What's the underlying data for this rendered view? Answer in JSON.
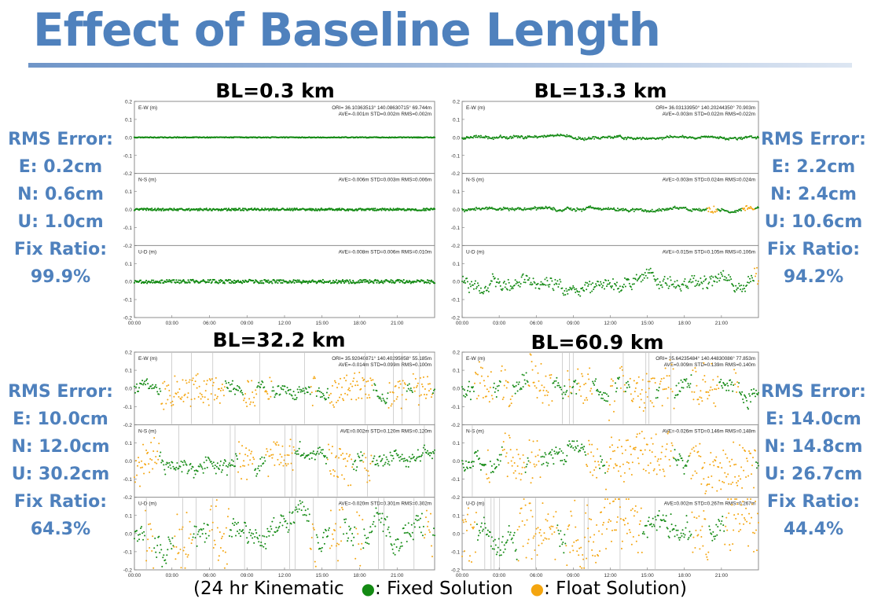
{
  "title": "Effect of Baseline Length",
  "colors": {
    "title": "#4f81bd",
    "fixed": "#138a13",
    "float": "#f4a50f",
    "gap": "#b3b3b3"
  },
  "footer": {
    "prefix": "(24 hr Kinematic",
    "fixed_dot": "●",
    "fixed_label": ": Fixed Solution",
    "float_dot": "●",
    "float_label": ": Float Solution)"
  },
  "panels": [
    {
      "title": "BL=0.3 km",
      "stats": [
        "RMS Error:",
        "E: 0.2cm",
        "N: 0.6cm",
        "U: 1.0cm",
        "Fix Ratio:",
        "99.9%"
      ]
    },
    {
      "title": "BL=13.3 km",
      "stats": [
        "RMS Error:",
        "E: 2.2cm",
        "N: 2.4cm",
        "U: 10.6cm",
        "Fix Ratio:",
        "94.2%"
      ]
    },
    {
      "title": "BL=32.2 km",
      "stats": [
        "RMS Error:",
        "E: 10.0cm",
        "N: 12.0cm",
        "U: 30.2cm",
        "Fix Ratio:",
        "64.3%"
      ]
    },
    {
      "title": "BL=60.9 km",
      "stats": [
        "RMS Error:",
        "E: 14.0cm",
        "N: 14.8cm",
        "U: 26.7cm",
        "Fix Ratio:",
        "44.4%"
      ]
    }
  ],
  "chart_data": [
    {
      "type": "scatter",
      "title": "BL=0.3 km",
      "x_ticks": [
        "00:00",
        "03:00",
        "06:00",
        "09:00",
        "12:00",
        "15:00",
        "18:00",
        "21:00"
      ],
      "y_ticks": [
        "0.2",
        "0.1",
        "0.0",
        "-0.1",
        "-0.2"
      ],
      "ylim": [
        -0.2,
        0.2
      ],
      "header": "ORI= 36.10363513° 140.08630715° 69.744m",
      "fix_ratio": 0.999,
      "subplots": [
        {
          "label": "E-W (m)",
          "stats": "AVE=-0.001m STD=0.002m RMS=0.002m",
          "rms": 0.002
        },
        {
          "label": "N-S (m)",
          "stats": "AVE=-0.006m STD=0.003m RMS=0.006m",
          "rms": 0.006
        },
        {
          "label": "U-D (m)",
          "stats": "AVE=-0.008m STD=0.006m RMS=0.010m",
          "rms": 0.01
        }
      ]
    },
    {
      "type": "scatter",
      "title": "BL=13.3 km",
      "x_ticks": [
        "00:00",
        "03:00",
        "06:00",
        "09:00",
        "12:00",
        "15:00",
        "18:00",
        "21:00"
      ],
      "y_ticks": [
        "0.2",
        "0.1",
        "0.0",
        "-0.1",
        "-0.2"
      ],
      "ylim": [
        -0.2,
        0.2
      ],
      "header": "ORI= 36.03133950° 140.20244350° 70.903m",
      "fix_ratio": 0.942,
      "subplots": [
        {
          "label": "E-W (m)",
          "stats": "AVE=-0.003m STD=0.022m RMS=0.022m",
          "rms": 0.022
        },
        {
          "label": "N-S (m)",
          "stats": "AVE=-0.003m STD=0.024m RMS=0.024m",
          "rms": 0.024
        },
        {
          "label": "U-D (m)",
          "stats": "AVE=-0.015m STD=0.105m RMS=0.106m",
          "rms": 0.106
        }
      ]
    },
    {
      "type": "scatter",
      "title": "BL=32.2 km",
      "x_ticks": [
        "00:00",
        "03:00",
        "06:00",
        "09:00",
        "12:00",
        "15:00",
        "18:00",
        "21:00"
      ],
      "y_ticks": [
        "0.2",
        "0.1",
        "0.0",
        "-0.1",
        "-0.2"
      ],
      "ylim": [
        -0.2,
        0.2
      ],
      "header": "ORI= 35.92040871° 140.40295058° 55.185m",
      "fix_ratio": 0.643,
      "subplots": [
        {
          "label": "E-W (m)",
          "stats": "AVE=-0.014m STD=0.099m RMS=0.100m",
          "rms": 0.1
        },
        {
          "label": "N-S (m)",
          "stats": "AVE=0.002m STD=0.120m RMS=0.120m",
          "rms": 0.12
        },
        {
          "label": "U-D (m)",
          "stats": "AVE=-0.020m STD=0.301m RMS=0.302m",
          "rms": 0.302
        }
      ]
    },
    {
      "type": "scatter",
      "title": "BL=60.9 km",
      "x_ticks": [
        "00:00",
        "03:00",
        "06:00",
        "09:00",
        "12:00",
        "15:00",
        "18:00",
        "21:00"
      ],
      "y_ticks": [
        "0.2",
        "0.1",
        "0.0",
        "-0.1",
        "-0.2"
      ],
      "ylim": [
        -0.2,
        0.2
      ],
      "header": "ORI= 35.64235484° 140.44830086° 77.853m",
      "fix_ratio": 0.444,
      "subplots": [
        {
          "label": "E-W (m)",
          "stats": "AVE=0.009m STD=0.139m RMS=0.140m",
          "rms": 0.14
        },
        {
          "label": "N-S (m)",
          "stats": "AVE=-0.026m STD=0.146m RMS=0.148m",
          "rms": 0.148
        },
        {
          "label": "U-D (m)",
          "stats": "AVE=0.002m STD=0.267m RMS=0.267m",
          "rms": 0.267
        }
      ]
    }
  ]
}
